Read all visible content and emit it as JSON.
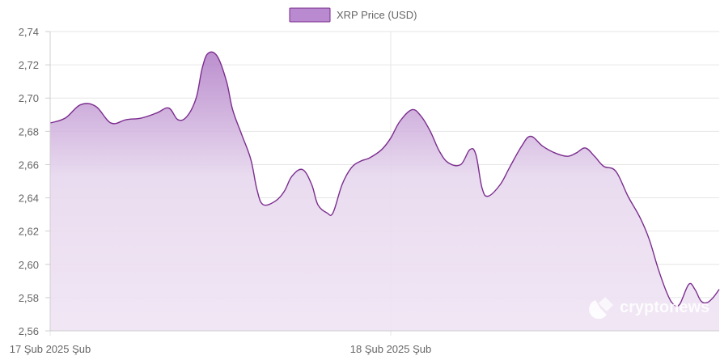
{
  "chart_data": {
    "type": "area",
    "legend": {
      "label": "XRP Price (USD)",
      "position": "top-center"
    },
    "series": [
      {
        "name": "XRP Price (USD)",
        "color": "#7b2d8e",
        "fill_color": "#c39bd3",
        "points": [
          [
            0.0,
            2.685
          ],
          [
            0.5,
            2.688
          ],
          [
            1.0,
            2.696
          ],
          [
            1.5,
            2.695
          ],
          [
            2.0,
            2.685
          ],
          [
            2.5,
            2.687
          ],
          [
            3.0,
            2.688
          ],
          [
            3.5,
            2.691
          ],
          [
            3.9,
            2.694
          ],
          [
            4.2,
            2.687
          ],
          [
            4.5,
            2.689
          ],
          [
            4.8,
            2.7
          ],
          [
            5.0,
            2.718
          ],
          [
            5.2,
            2.727
          ],
          [
            5.5,
            2.725
          ],
          [
            5.8,
            2.71
          ],
          [
            6.0,
            2.693
          ],
          [
            6.3,
            2.678
          ],
          [
            6.6,
            2.663
          ],
          [
            6.8,
            2.645
          ],
          [
            7.0,
            2.636
          ],
          [
            7.4,
            2.638
          ],
          [
            7.7,
            2.644
          ],
          [
            7.95,
            2.653
          ],
          [
            8.3,
            2.657
          ],
          [
            8.6,
            2.648
          ],
          [
            8.8,
            2.636
          ],
          [
            9.1,
            2.631
          ],
          [
            9.3,
            2.631
          ],
          [
            9.6,
            2.648
          ],
          [
            9.9,
            2.658
          ],
          [
            10.2,
            2.662
          ],
          [
            10.5,
            2.664
          ],
          [
            10.9,
            2.669
          ],
          [
            11.2,
            2.676
          ],
          [
            11.5,
            2.686
          ],
          [
            11.9,
            2.693
          ],
          [
            12.2,
            2.689
          ],
          [
            12.5,
            2.68
          ],
          [
            12.8,
            2.668
          ],
          [
            13.1,
            2.661
          ],
          [
            13.5,
            2.66
          ],
          [
            13.8,
            2.669
          ],
          [
            14.0,
            2.666
          ],
          [
            14.2,
            2.646
          ],
          [
            14.4,
            2.641
          ],
          [
            14.8,
            2.648
          ],
          [
            15.1,
            2.658
          ],
          [
            15.5,
            2.671
          ],
          [
            15.8,
            2.677
          ],
          [
            16.2,
            2.671
          ],
          [
            16.6,
            2.667
          ],
          [
            17.0,
            2.665
          ],
          [
            17.3,
            2.667
          ],
          [
            17.6,
            2.67
          ],
          [
            17.9,
            2.665
          ],
          [
            18.2,
            2.659
          ],
          [
            18.6,
            2.656
          ],
          [
            19.0,
            2.641
          ],
          [
            19.4,
            2.628
          ],
          [
            19.7,
            2.615
          ],
          [
            20.0,
            2.597
          ],
          [
            20.3,
            2.582
          ],
          [
            20.5,
            2.576
          ],
          [
            20.7,
            2.576
          ],
          [
            21.0,
            2.588
          ],
          [
            21.2,
            2.585
          ],
          [
            21.4,
            2.578
          ],
          [
            21.6,
            2.577
          ],
          [
            21.8,
            2.58
          ],
          [
            22.0,
            2.585
          ]
        ]
      }
    ],
    "x_axis": {
      "range": [
        0,
        22.0
      ],
      "ticks": [
        {
          "x": 0.0,
          "label": "17 Şub 2025 Şub"
        },
        {
          "x": 11.2,
          "label": "18 Şub 2025 Şub"
        }
      ]
    },
    "y_axis": {
      "range": [
        2.56,
        2.74
      ],
      "ticks": [
        {
          "y": 2.56,
          "label": "2,56"
        },
        {
          "y": 2.58,
          "label": "2,58"
        },
        {
          "y": 2.6,
          "label": "2,60"
        },
        {
          "y": 2.62,
          "label": "2,62"
        },
        {
          "y": 2.64,
          "label": "2,64"
        },
        {
          "y": 2.66,
          "label": "2,66"
        },
        {
          "y": 2.68,
          "label": "2,68"
        },
        {
          "y": 2.7,
          "label": "2,70"
        },
        {
          "y": 2.72,
          "label": "2,72"
        },
        {
          "y": 2.74,
          "label": "2,74"
        }
      ]
    },
    "grid": true,
    "watermark": "cryptonews"
  }
}
